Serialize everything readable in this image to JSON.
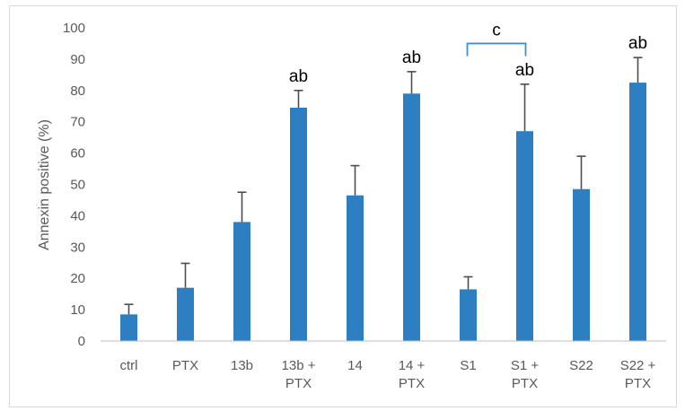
{
  "chart_data": {
    "type": "bar",
    "ylabel": "Annexin positive (%)",
    "xlabel": "",
    "ylim": [
      0,
      100
    ],
    "yticks": [
      0,
      10,
      20,
      30,
      40,
      50,
      60,
      70,
      80,
      90,
      100
    ],
    "grid": false,
    "categories": [
      [
        "ctrl"
      ],
      [
        "PTX"
      ],
      [
        "13b"
      ],
      [
        "13b +",
        "PTX"
      ],
      [
        "14"
      ],
      [
        "14 +",
        "PTX"
      ],
      [
        "S1"
      ],
      [
        "S1 +",
        "PTX"
      ],
      [
        "S22"
      ],
      [
        "S22 +",
        "PTX"
      ]
    ],
    "series": [
      {
        "values": [
          8.5,
          17,
          38,
          74.5,
          46.5,
          79,
          16.5,
          67,
          48.5,
          82.5
        ],
        "errors": [
          3.2,
          7.8,
          9.5,
          5.5,
          9.5,
          7,
          4,
          15,
          10.5,
          8
        ]
      }
    ],
    "annotations": [
      "",
      "",
      "",
      "ab",
      "",
      "ab",
      "",
      "ab",
      "",
      "ab"
    ],
    "bracket": {
      "label": "c",
      "from_index": 6,
      "to_index": 7,
      "y": 95
    },
    "colors": {
      "bar": "#2e7fc2",
      "error": "#4d4d4d",
      "bracket": "#3a8fcf",
      "axis": "#bfbfbf"
    }
  }
}
